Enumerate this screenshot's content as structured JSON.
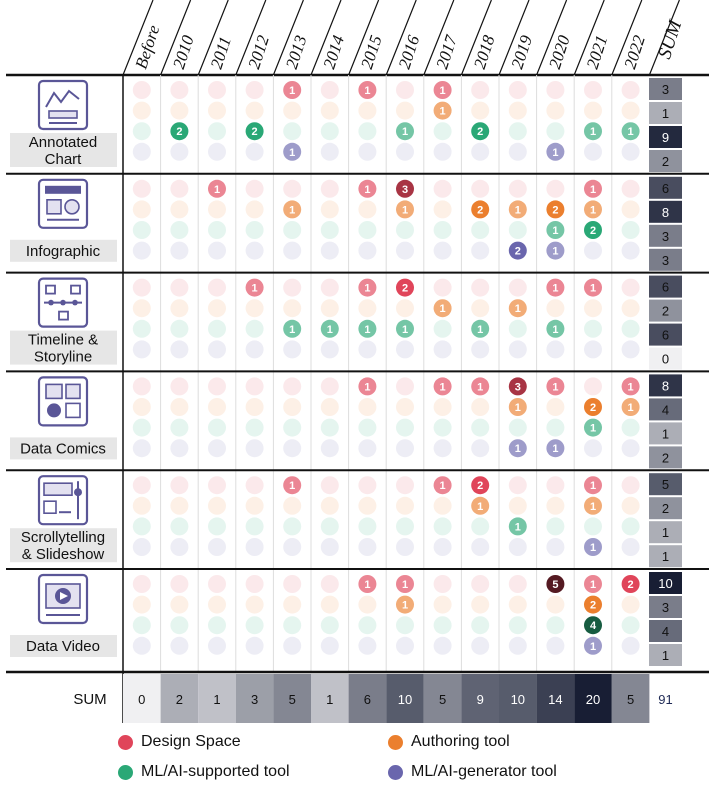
{
  "chart_data": {
    "type": "heatmap",
    "years": [
      "Before",
      "2010",
      "2011",
      "2012",
      "2013",
      "2014",
      "2015",
      "2016",
      "2017",
      "2018",
      "2019",
      "2020",
      "2021",
      "2022"
    ],
    "sum_header": "SUM",
    "series": [
      {
        "name": "Design Space",
        "color": "#e0455a"
      },
      {
        "name": "Authoring tool",
        "color": "#eb7f2e"
      },
      {
        "name": "ML/AI-supported tool",
        "color": "#2aa876"
      },
      {
        "name": "ML/AI-generator tool",
        "color": "#6a66ad"
      }
    ],
    "categories": [
      {
        "label": [
          "Annotated",
          "Chart"
        ],
        "icon": "annotated-chart-icon",
        "rows": [
          [
            0,
            0,
            0,
            0,
            1,
            0,
            1,
            0,
            1,
            0,
            0,
            0,
            0,
            0
          ],
          [
            0,
            0,
            0,
            0,
            0,
            0,
            0,
            0,
            1,
            0,
            0,
            0,
            0,
            0
          ],
          [
            0,
            2,
            0,
            2,
            0,
            0,
            0,
            1,
            0,
            2,
            0,
            0,
            1,
            1
          ],
          [
            0,
            0,
            0,
            0,
            1,
            0,
            0,
            0,
            0,
            0,
            0,
            1,
            0,
            0
          ]
        ],
        "row_sums": [
          3,
          1,
          9,
          2
        ]
      },
      {
        "label": [
          "Infographic"
        ],
        "icon": "infographic-icon",
        "rows": [
          [
            0,
            0,
            1,
            0,
            0,
            0,
            1,
            3,
            0,
            0,
            0,
            0,
            1,
            0
          ],
          [
            0,
            0,
            0,
            0,
            1,
            0,
            0,
            1,
            0,
            2,
            1,
            2,
            1,
            0
          ],
          [
            0,
            0,
            0,
            0,
            0,
            0,
            0,
            0,
            0,
            0,
            0,
            1,
            2,
            0
          ],
          [
            0,
            0,
            0,
            0,
            0,
            0,
            0,
            0,
            0,
            0,
            2,
            1,
            0,
            0
          ]
        ],
        "row_sums": [
          6,
          8,
          3,
          3
        ]
      },
      {
        "label": [
          "Timeline &",
          "Storyline"
        ],
        "icon": "timeline-icon",
        "rows": [
          [
            0,
            0,
            0,
            1,
            0,
            0,
            1,
            2,
            0,
            0,
            0,
            1,
            1,
            0
          ],
          [
            0,
            0,
            0,
            0,
            0,
            0,
            0,
            0,
            1,
            0,
            1,
            0,
            0,
            0
          ],
          [
            0,
            0,
            0,
            0,
            1,
            1,
            1,
            1,
            0,
            1,
            0,
            1,
            0,
            0
          ],
          [
            0,
            0,
            0,
            0,
            0,
            0,
            0,
            0,
            0,
            0,
            0,
            0,
            0,
            0
          ]
        ],
        "row_sums": [
          6,
          2,
          6,
          0
        ]
      },
      {
        "label": [
          "Data Comics"
        ],
        "icon": "data-comics-icon",
        "rows": [
          [
            0,
            0,
            0,
            0,
            0,
            0,
            1,
            0,
            1,
            1,
            3,
            1,
            0,
            1
          ],
          [
            0,
            0,
            0,
            0,
            0,
            0,
            0,
            0,
            0,
            0,
            1,
            0,
            2,
            1
          ],
          [
            0,
            0,
            0,
            0,
            0,
            0,
            0,
            0,
            0,
            0,
            0,
            0,
            1,
            0
          ],
          [
            0,
            0,
            0,
            0,
            0,
            0,
            0,
            0,
            0,
            0,
            1,
            1,
            0,
            0
          ]
        ],
        "row_sums": [
          8,
          4,
          1,
          2
        ]
      },
      {
        "label": [
          "Scrollytelling",
          "& Slideshow"
        ],
        "icon": "scrollytelling-icon",
        "rows": [
          [
            0,
            0,
            0,
            0,
            1,
            0,
            0,
            0,
            1,
            2,
            0,
            0,
            1,
            0
          ],
          [
            0,
            0,
            0,
            0,
            0,
            0,
            0,
            0,
            0,
            1,
            0,
            0,
            1,
            0
          ],
          [
            0,
            0,
            0,
            0,
            0,
            0,
            0,
            0,
            0,
            0,
            1,
            0,
            0,
            0
          ],
          [
            0,
            0,
            0,
            0,
            0,
            0,
            0,
            0,
            0,
            0,
            0,
            0,
            1,
            0
          ]
        ],
        "row_sums": [
          5,
          2,
          1,
          1
        ]
      },
      {
        "label": [
          "Data Video"
        ],
        "icon": "data-video-icon",
        "rows": [
          [
            0,
            0,
            0,
            0,
            0,
            0,
            1,
            1,
            0,
            0,
            0,
            5,
            1,
            2
          ],
          [
            0,
            0,
            0,
            0,
            0,
            0,
            0,
            1,
            0,
            0,
            0,
            0,
            2,
            0
          ],
          [
            0,
            0,
            0,
            0,
            0,
            0,
            0,
            0,
            0,
            0,
            0,
            0,
            4,
            0
          ],
          [
            0,
            0,
            0,
            0,
            0,
            0,
            0,
            0,
            0,
            0,
            0,
            0,
            1,
            0
          ]
        ],
        "row_sums": [
          10,
          3,
          4,
          1
        ]
      }
    ],
    "sum_label": "SUM",
    "year_sums": [
      0,
      2,
      1,
      3,
      5,
      1,
      6,
      10,
      5,
      9,
      10,
      14,
      20,
      5
    ],
    "grand_total": 91
  }
}
